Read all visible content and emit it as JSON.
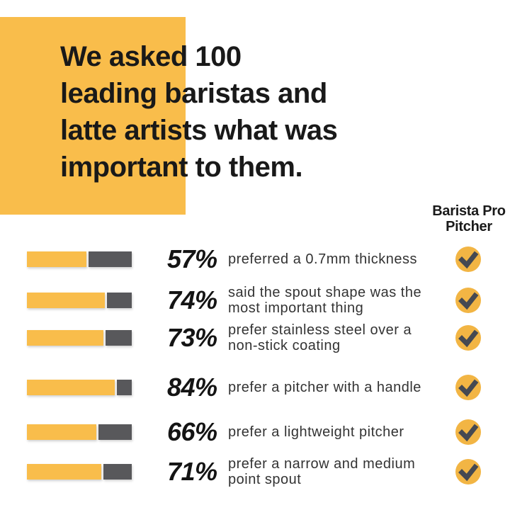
{
  "colors": {
    "yellow": "#F9BD4B",
    "circle_yellow": "#F2B544",
    "bar_gray": "#58585B",
    "check_gray": "#454952"
  },
  "intro": {
    "text": "We asked 100\nleading baristas and\nlatte artists what was\nimportant to them."
  },
  "product_column": {
    "label": "Barista Pro\nPitcher"
  },
  "rows": [
    {
      "pct_label": "57%",
      "value": 57,
      "description": "preferred a 0.7mm thickness",
      "checked": true
    },
    {
      "pct_label": "74%",
      "value": 74,
      "description": "said the spout shape was the\nmost important thing",
      "checked": true
    },
    {
      "pct_label": "73%",
      "value": 73,
      "description": "prefer stainless steel over a\nnon-stick coating",
      "checked": true
    },
    {
      "pct_label": "84%",
      "value": 84,
      "description": "prefer a pitcher with a handle",
      "checked": true
    },
    {
      "pct_label": "66%",
      "value": 66,
      "description": "prefer a lightweight pitcher",
      "checked": true
    },
    {
      "pct_label": "71%",
      "value": 71,
      "description": "prefer a narrow and medium\npoint spout",
      "checked": true
    }
  ],
  "chart_data": {
    "type": "bar",
    "title": "We asked 100 leading baristas and latte artists what was important to them.",
    "categories": [
      "preferred a 0.7mm thickness",
      "said the spout shape was the most important thing",
      "prefer stainless steel over a non-stick coating",
      "prefer a pitcher with a handle",
      "prefer a lightweight pitcher",
      "prefer a narrow and medium point spout"
    ],
    "values": [
      57,
      74,
      73,
      84,
      66,
      71
    ],
    "unit": "%",
    "xlim": [
      0,
      100
    ],
    "orientation": "horizontal",
    "legend_column": "Barista Pro Pitcher",
    "checked_per_row": [
      true,
      true,
      true,
      true,
      true,
      true
    ],
    "grid": false
  }
}
